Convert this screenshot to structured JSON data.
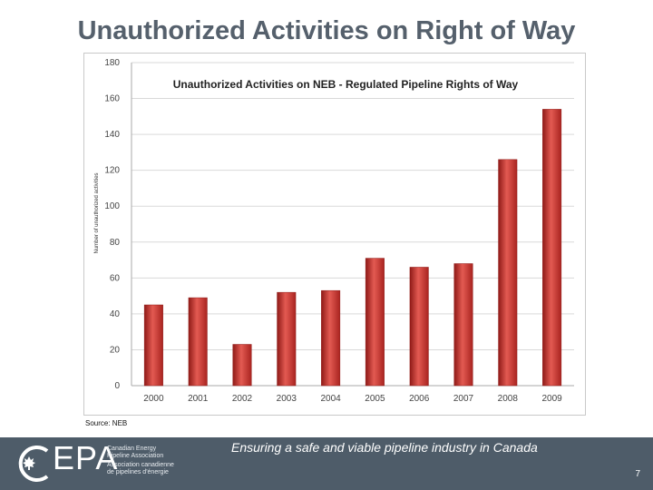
{
  "slide": {
    "title": "Unauthorized Activities on Right of Way",
    "source": "Source: NEB",
    "page_number": "7"
  },
  "footer": {
    "tagline": "Ensuring a safe and viable pipeline industry in Canada",
    "logo_text": "EPA",
    "logo_lines": [
      "Canadian Energy",
      "Pipeline Association",
      "Association canadienne",
      "de pipelines d'énergie"
    ],
    "colors": {
      "background": "#4e5c69"
    }
  },
  "chart_data": {
    "type": "bar",
    "title": "Unauthorized Activities on NEB - Regulated Pipeline Rights of Way",
    "ylabel": "Number of unauthorized activities",
    "xlabel": "",
    "categories": [
      "2000",
      "2001",
      "2002",
      "2003",
      "2004",
      "2005",
      "2006",
      "2007",
      "2008",
      "2009"
    ],
    "values": [
      45,
      49,
      23,
      52,
      53,
      71,
      66,
      68,
      126,
      154
    ],
    "ylim": [
      0,
      180
    ],
    "yticks": [
      0,
      20,
      40,
      60,
      80,
      100,
      120,
      140,
      160,
      180
    ],
    "grid": true,
    "colors": {
      "bar": "#c0302c",
      "bar_light": "#e35a52",
      "bar_dark": "#8f1a17",
      "grid": "#d9d9d9"
    }
  }
}
